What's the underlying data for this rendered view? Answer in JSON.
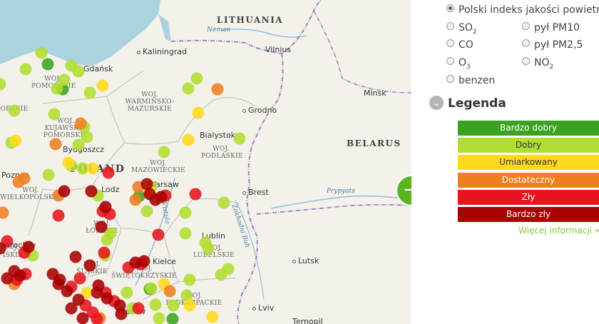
{
  "map": {
    "countries": [
      "LITHUANIA",
      "POLAND",
      "BELARUS"
    ],
    "cities": [
      "Kaliningrad",
      "Vilnius",
      "Gdańsk",
      "Minsk",
      "Grodno",
      "Bialystok",
      "Bydgoszcz",
      "Poznan",
      "Lodz",
      "Warsaw",
      "Brest",
      "Lublin",
      "Lutsk",
      "Kielce",
      "Lviv",
      "Ternopil",
      "Krakow",
      "Wroclaw"
    ],
    "regions": [
      "WOJ. POMORSKIE",
      "WOJ. WARMIŃSKO-MAZURSKIE",
      "WOJ. KUJAWSKO-POMORSKIE",
      "WOJ. PODLASKIE",
      "WOJ. MAZOWIECKIE",
      "WOJ. WIELKOPOLSKIE",
      "WOJ. ŁÓDZKIE",
      "WOJ. LUBELSKIE",
      "WOJ. ŚLĄSKIE",
      "WOJ. ŚWIĘTOKRZYSKIE",
      "WOJ. PODKARPACKIE"
    ],
    "region_fragments": [
      "ORSKIE",
      "WOJ.",
      "ISKIE"
    ],
    "waters": [
      "Neman",
      "Prypyats",
      "Zakhodni Buh",
      "Vistula"
    ],
    "stations_by_quality": {
      "bardzo_dobry": 5,
      "dobry": 44,
      "umiarkowany": 11,
      "dostateczny": 12,
      "zly": 22,
      "bardzo_zly": 29
    }
  },
  "controls": {
    "next_button": "→"
  },
  "pollutants": {
    "options": [
      {
        "id": "index",
        "label": "Polski indeks jakości powietrza",
        "selected": true
      },
      {
        "id": "so2",
        "label": "SO",
        "sub": "2",
        "selected": false
      },
      {
        "id": "pm10",
        "label": "pył PM10",
        "selected": false
      },
      {
        "id": "co",
        "label": "CO",
        "selected": false
      },
      {
        "id": "pm25",
        "label": "pył PM2,5",
        "selected": false
      },
      {
        "id": "o3",
        "label": "O",
        "sub": "3",
        "selected": false
      },
      {
        "id": "no2",
        "label": "NO",
        "sub": "2",
        "selected": false
      },
      {
        "id": "benzen",
        "label": "benzen",
        "selected": false
      }
    ]
  },
  "legend": {
    "title": "Legenda",
    "toggle_icon": "⌄",
    "items": [
      {
        "label": "Bardzo dobry",
        "color": "#3aa421"
      },
      {
        "label": "Dobry",
        "color": "#b2dd31"
      },
      {
        "label": "Umiarkowany",
        "color": "#ffd91e"
      },
      {
        "label": "Dostateczny",
        "color": "#ef7e21"
      },
      {
        "label": "Zły",
        "color": "#e6141e"
      },
      {
        "label": "Bardzo zły",
        "color": "#a90000"
      }
    ],
    "more_info": "Więcej informacji »"
  }
}
